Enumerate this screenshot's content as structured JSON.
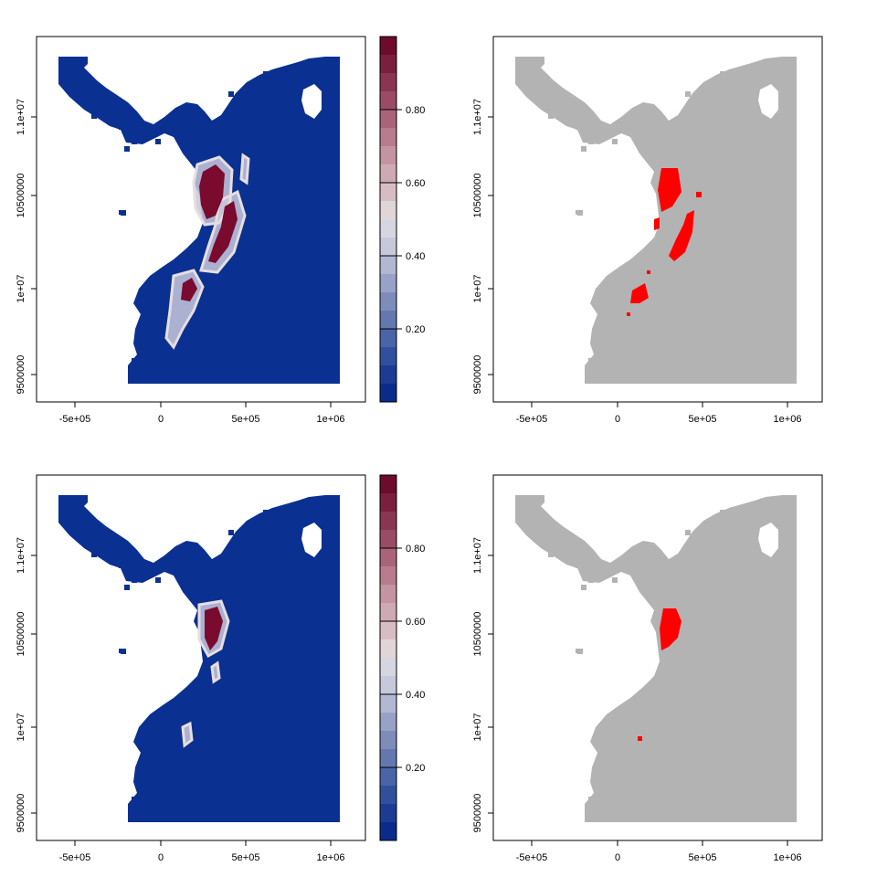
{
  "colors": {
    "land_blue": "#0a3091",
    "land_gray": "#b3b3b3",
    "presence_red": "#ff0000",
    "suitability_dark_red": "#7a0a2e",
    "frame": "#000000"
  },
  "legend": {
    "tick_labels": [
      "0.20",
      "0.40",
      "0.60",
      "0.80"
    ],
    "palette": [
      "#0a2a8c",
      "#1c3c94",
      "#30509e",
      "#4a64a8",
      "#6478b0",
      "#7e8cba",
      "#98a2c6",
      "#b2b8d2",
      "#c6c8dc",
      "#d6d6e0",
      "#e0d6d8",
      "#d8bcc4",
      "#ceaab4",
      "#c494a2",
      "#b87c8e",
      "#aa647a",
      "#9a4c66",
      "#8a3652",
      "#7a203e",
      "#6e0a2c"
    ]
  },
  "panels": [
    {
      "id": "top-left",
      "style": "continuous",
      "legend": true,
      "x_ticks": [
        "-5e+05",
        "0",
        "5e+05",
        "1e+06"
      ],
      "y_ticks": [
        "9500000",
        "1e+07",
        "10500000",
        "1.1e+07"
      ]
    },
    {
      "id": "top-right",
      "style": "binary",
      "legend": false,
      "x_ticks": [
        "-5e+05",
        "0",
        "5e+05",
        "1e+06"
      ],
      "y_ticks": [
        "9500000",
        "1e+07",
        "10500000",
        "1.1e+07"
      ]
    },
    {
      "id": "bottom-left",
      "style": "continuous",
      "legend": true,
      "x_ticks": [
        "-5e+05",
        "0",
        "5e+05",
        "1e+06"
      ],
      "y_ticks": [
        "9500000",
        "1e+07",
        "10500000",
        "1.1e+07"
      ]
    },
    {
      "id": "bottom-right",
      "style": "binary",
      "legend": false,
      "x_ticks": [
        "-5e+05",
        "0",
        "5e+05",
        "1e+06"
      ],
      "y_ticks": [
        "9500000",
        "1e+07",
        "10500000",
        "1.1e+07"
      ]
    }
  ]
}
